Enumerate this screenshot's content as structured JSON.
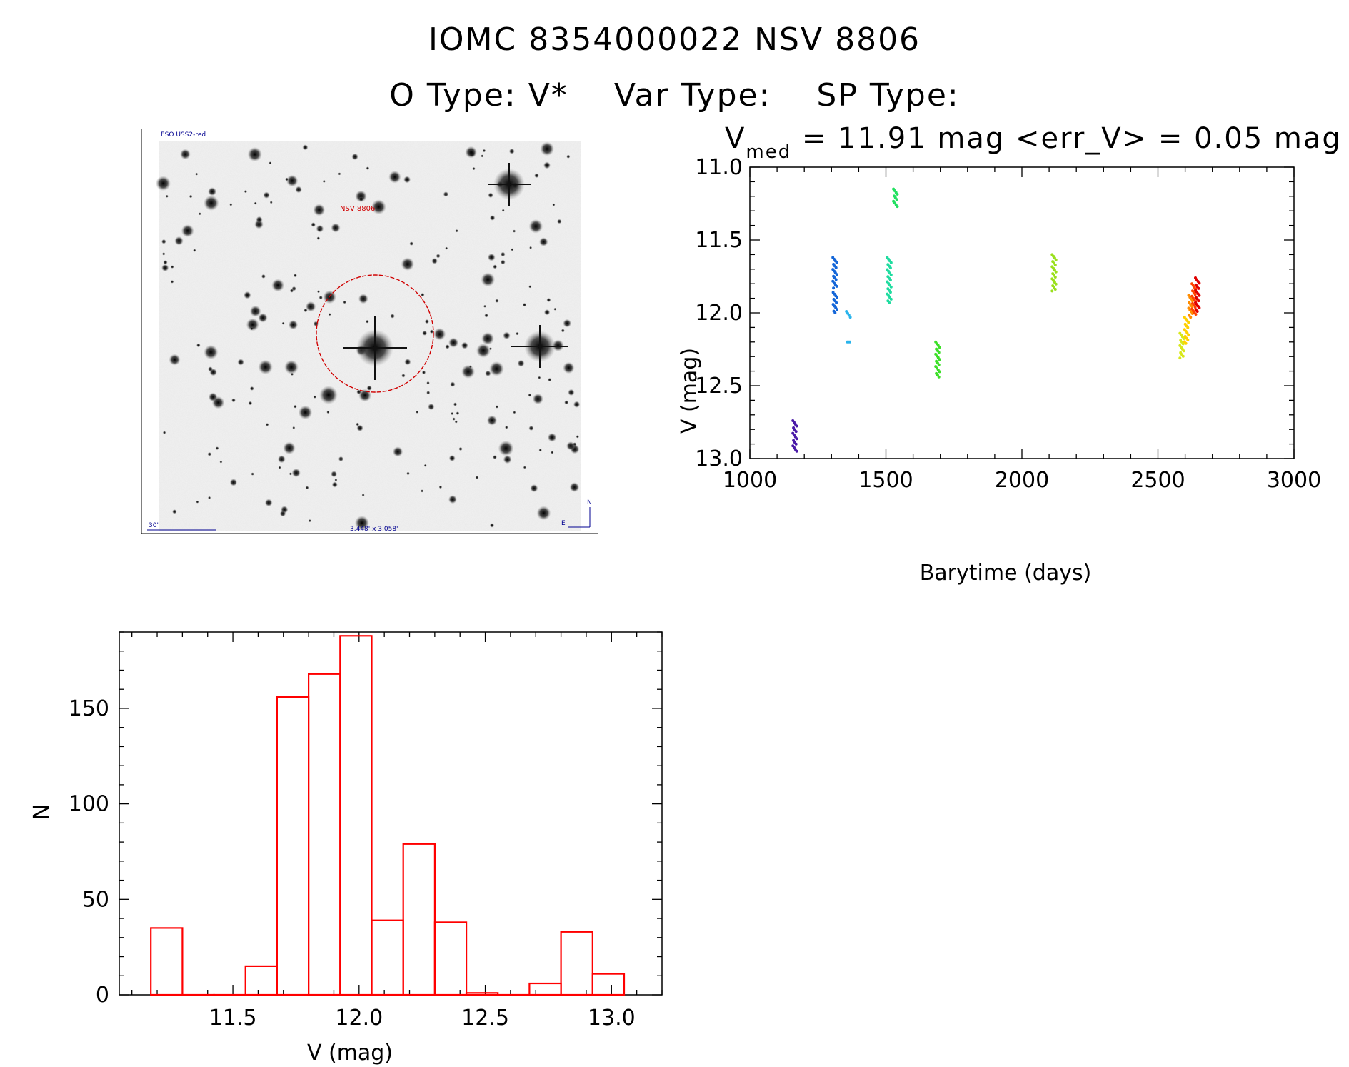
{
  "header": {
    "line1": "IOMC 8354000022    NSV  8806",
    "otype": "O Type: V*",
    "vartype": "Var Type:",
    "sptype": "SP Type:"
  },
  "image": {
    "survey_label": "ESO USS2-red",
    "target_label": "NSV 8806",
    "scale_label": "30\"",
    "size_label": "3.448' x 3.058'",
    "north_label": "N",
    "east_label": "E"
  },
  "colors": {
    "hist": "#ff0000",
    "circle": "#d00000",
    "labels": "#000090"
  },
  "chart_data": [
    {
      "type": "scatter",
      "title_prefix": "V",
      "title_sub": "med",
      "title_rest": " = 11.91 mag <err_V> = 0.05 mag",
      "xlabel": "Barytime (days)",
      "ylabel": "V (mag)",
      "xlim": [
        1000,
        3000
      ],
      "ylim": [
        11.0,
        13.0
      ],
      "y_inverted": true,
      "xticks": [
        1000,
        1500,
        2000,
        2500,
        3000
      ],
      "yticks": [
        "11.0",
        "11.5",
        "12.0",
        "12.5",
        "13.0"
      ],
      "groups": [
        {
          "x": 1165,
          "ymin": 12.74,
          "ymax": 12.95,
          "color": "#4a1aa8"
        },
        {
          "x": 1312,
          "ymin": 11.62,
          "ymax": 11.83,
          "color": "#1466d8"
        },
        {
          "x": 1313,
          "ymin": 11.86,
          "ymax": 12.0,
          "color": "#1466d8"
        },
        {
          "x": 1362,
          "ymin": 11.99,
          "ymax": 12.03,
          "color": "#2ab4ec"
        },
        {
          "x": 1365,
          "ymin": 12.2,
          "ymax": 12.2,
          "color": "#2ab4ec"
        },
        {
          "x": 1512,
          "ymin": 11.62,
          "ymax": 11.93,
          "color": "#20dca0"
        },
        {
          "x": 1535,
          "ymin": 11.15,
          "ymax": 11.27,
          "color": "#22e060"
        },
        {
          "x": 1690,
          "ymin": 12.2,
          "ymax": 12.44,
          "color": "#3ce028"
        },
        {
          "x": 2118,
          "ymin": 11.6,
          "ymax": 11.85,
          "color": "#9ae01e"
        },
        {
          "x": 2588,
          "ymin": 12.14,
          "ymax": 12.31,
          "color": "#d8e81a"
        },
        {
          "x": 2605,
          "ymin": 12.03,
          "ymax": 12.21,
          "color": "#ffd000"
        },
        {
          "x": 2620,
          "ymin": 11.88,
          "ymax": 12.03,
          "color": "#ff8c00"
        },
        {
          "x": 2632,
          "ymin": 11.8,
          "ymax": 12.01,
          "color": "#ff4400"
        },
        {
          "x": 2645,
          "ymin": 11.76,
          "ymax": 11.99,
          "color": "#e00000"
        }
      ]
    },
    {
      "type": "bar",
      "xlabel": "V (mag)",
      "ylabel": "N",
      "xlim": [
        11.05,
        13.2
      ],
      "ylim": [
        0,
        190
      ],
      "xticks": [
        "11.5",
        "12.0",
        "12.5",
        "13.0"
      ],
      "yticks": [
        "0",
        "50",
        "100",
        "150"
      ],
      "bin_width": 0.125,
      "bins": [
        {
          "x0": 11.175,
          "n": 35
        },
        {
          "x0": 11.3,
          "n": 0
        },
        {
          "x0": 11.425,
          "n": 0
        },
        {
          "x0": 11.55,
          "n": 15
        },
        {
          "x0": 11.675,
          "n": 156
        },
        {
          "x0": 11.8,
          "n": 168
        },
        {
          "x0": 11.925,
          "n": 188
        },
        {
          "x0": 12.05,
          "n": 39
        },
        {
          "x0": 12.175,
          "n": 79
        },
        {
          "x0": 12.3,
          "n": 38
        },
        {
          "x0": 12.425,
          "n": 1
        },
        {
          "x0": 12.55,
          "n": 0
        },
        {
          "x0": 12.675,
          "n": 6
        },
        {
          "x0": 12.8,
          "n": 33
        },
        {
          "x0": 12.925,
          "n": 11
        }
      ]
    }
  ]
}
